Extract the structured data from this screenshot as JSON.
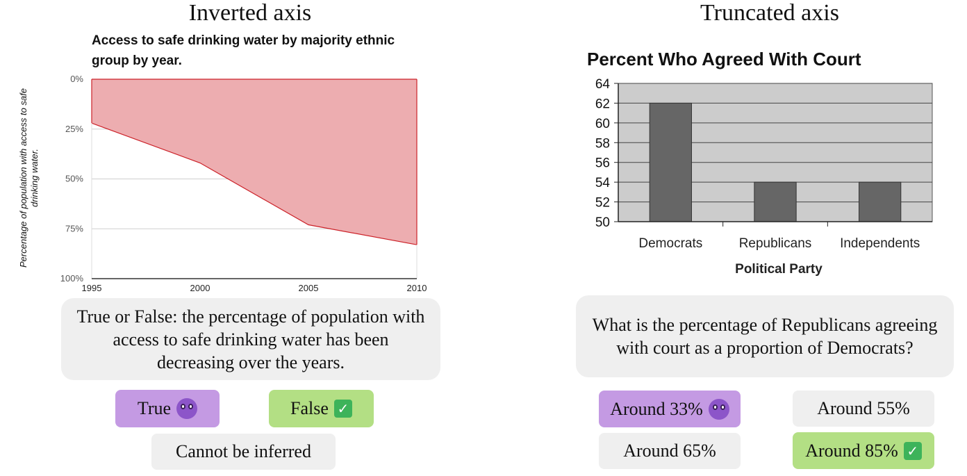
{
  "left_panel": {
    "heading": "Inverted axis",
    "question": "True or False: the percentage of population with access to safe drinking water has been decreasing over the years.",
    "options": [
      {
        "label": "True",
        "marker": "devil-icon"
      },
      {
        "label": "False",
        "marker": "check-icon"
      },
      {
        "label": "Cannot be inferred",
        "marker": ""
      }
    ]
  },
  "right_panel": {
    "heading": "Truncated axis",
    "question": "What is the percentage of Republicans agreeing with court as a proportion of Democrats?",
    "options": [
      {
        "label": "Around 33%",
        "marker": "devil-icon"
      },
      {
        "label": "Around 55%",
        "marker": ""
      },
      {
        "label": "Around 65%",
        "marker": ""
      },
      {
        "label": "Around 85%",
        "marker": "check-icon"
      }
    ]
  },
  "colors": {
    "wrong_option": "#c49ae3",
    "right_option": "#b3df84",
    "neutral_option": "#efefef",
    "area_fill": "#edadb0",
    "area_line": "#cc2229",
    "bar_fill": "#666666",
    "plot_bg": "#cccccc"
  },
  "chart_data": [
    {
      "type": "area",
      "title": "Access to safe drinking water by majority ethnic group by year.",
      "xlabel": "",
      "ylabel": "Percentage of population with access to safe drinking water.",
      "x": [
        1995,
        2000,
        2005,
        2010
      ],
      "y": [
        22,
        42,
        73,
        83
      ],
      "y_inverted": true,
      "ylim": [
        0,
        100
      ],
      "xlim": [
        1995,
        2010
      ],
      "y_tick_labels": [
        "0%",
        "25%",
        "50%",
        "75%",
        "100%"
      ],
      "x_tick_labels": [
        "1995",
        "2000",
        "2005",
        "2010"
      ],
      "grid": true
    },
    {
      "type": "bar",
      "title": "Percent Who Agreed With Court",
      "xlabel": "Political Party",
      "ylabel": "",
      "categories": [
        "Democrats",
        "Republicans",
        "Independents"
      ],
      "values": [
        62,
        54,
        54
      ],
      "ylim": [
        50,
        64
      ],
      "y_ticks": [
        50,
        52,
        54,
        56,
        58,
        60,
        62,
        64
      ],
      "grid": true
    }
  ]
}
